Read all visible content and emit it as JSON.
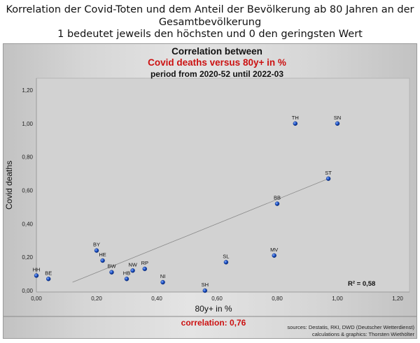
{
  "outer_title": {
    "line1": "Korrelation der Covid-Toten und dem Anteil der Bevölkerung ab 80 Jahren an der",
    "line2": "Gesamtbevölkerung",
    "line3": "1 bedeutet jeweils den höchsten und 0 den geringsten Wert"
  },
  "chart_data": {
    "type": "scatter",
    "title": "Correlation between",
    "subtitle": "Covid deaths versus 80y+ in %",
    "subtitle2": "period from 2020-52 until 2022-03",
    "xlabel": "80y+ in %",
    "ylabel": "Covid deaths",
    "xlim": [
      0,
      1.2
    ],
    "ylim": [
      0,
      1.2
    ],
    "xticks": [
      "0,00",
      "0,20",
      "0,40",
      "0,60",
      "0,80",
      "1,00",
      "1,20"
    ],
    "yticks": [
      "0,00",
      "0,20",
      "0,40",
      "0,60",
      "0,80",
      "1,00",
      "1,20"
    ],
    "points": [
      {
        "label": "HH",
        "x": 0.0,
        "y": 0.09
      },
      {
        "label": "BE",
        "x": 0.04,
        "y": 0.07
      },
      {
        "label": "BY",
        "x": 0.2,
        "y": 0.24
      },
      {
        "label": "HE",
        "x": 0.22,
        "y": 0.18
      },
      {
        "label": "BW",
        "x": 0.25,
        "y": 0.11
      },
      {
        "label": "HB",
        "x": 0.3,
        "y": 0.07
      },
      {
        "label": "NW",
        "x": 0.32,
        "y": 0.12
      },
      {
        "label": "RP",
        "x": 0.36,
        "y": 0.13
      },
      {
        "label": "NI",
        "x": 0.42,
        "y": 0.05
      },
      {
        "label": "SH",
        "x": 0.56,
        "y": 0.0
      },
      {
        "label": "SL",
        "x": 0.63,
        "y": 0.17
      },
      {
        "label": "MV",
        "x": 0.79,
        "y": 0.21
      },
      {
        "label": "BB",
        "x": 0.8,
        "y": 0.52
      },
      {
        "label": "TH",
        "x": 0.86,
        "y": 1.0
      },
      {
        "label": "ST",
        "x": 0.97,
        "y": 0.67
      },
      {
        "label": "SN",
        "x": 1.0,
        "y": 1.0
      }
    ],
    "trendline": {
      "x": [
        0.12,
        0.97
      ],
      "y": [
        0.05,
        0.67
      ]
    },
    "r_squared_label": "R² = 0,58",
    "correlation_label": "correlation: 0,76",
    "grid": false,
    "colors": {
      "point": "#1a4fc4",
      "subtitle": "#cc1111",
      "correlation": "#cc1111",
      "trendline": "#8a8a8a"
    }
  },
  "sources": {
    "line1": "sources: Destatis, RKI, DWD (Deutscher Wetterdienst)",
    "line2": "calculations & graphics: Thorsten Wiethölter"
  }
}
